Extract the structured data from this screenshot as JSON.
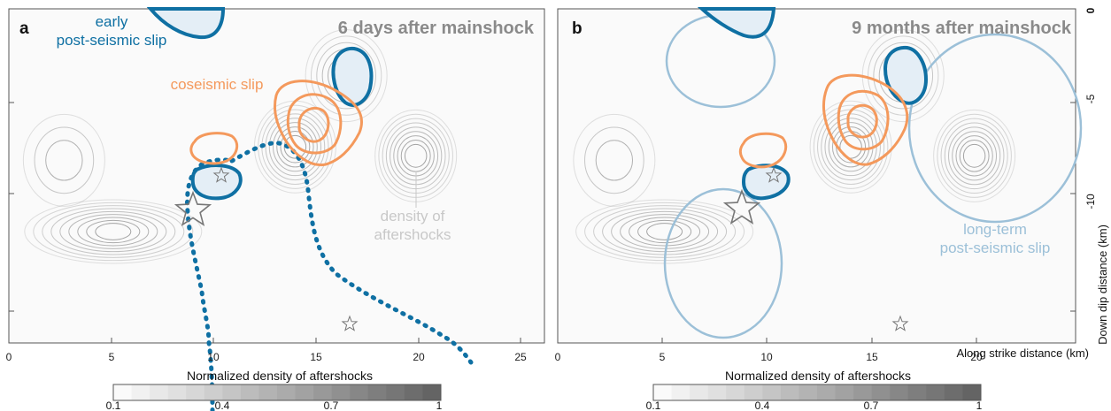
{
  "chart_data": [
    {
      "type": "contour",
      "panel_label": "a",
      "title": "6 days after mainshock",
      "xlim": [
        0,
        26
      ],
      "ylim": [
        0,
        -15
      ],
      "x_ticks": [
        0,
        5,
        10,
        15,
        20,
        25
      ],
      "y_ticks": [
        -5,
        -10
      ],
      "annotations": {
        "early_postseismic": [
          "early",
          "post-seismic slip"
        ],
        "coseismic": "coseismic slip",
        "density": [
          "density of",
          "aftershocks"
        ]
      },
      "aftershock_density_peaks": [
        {
          "x": 5.1,
          "y": -10.0,
          "peak": 1.0
        },
        {
          "x": 14.0,
          "y": -6.2,
          "peak": 1.0
        },
        {
          "x": 19.9,
          "y": -6.6,
          "peak": 1.0
        },
        {
          "x": 16.5,
          "y": -3.0,
          "peak": 0.7
        },
        {
          "x": 2.7,
          "y": -6.8,
          "peak": 0.3
        }
      ],
      "coseismic_slip_contours": [
        {
          "x": 14.2,
          "y": -6.0,
          "levels": 3
        },
        {
          "x": 9.5,
          "y": -7.7,
          "levels": 1
        }
      ],
      "early_postseismic_slip_patches": [
        {
          "x": 8.0,
          "y": 0.0
        },
        {
          "x": 16.9,
          "y": -3.2
        },
        {
          "x": 10.2,
          "y": -9.5
        }
      ],
      "early_postseismic_boundary": "dotted",
      "stars": [
        {
          "x": 8.8,
          "y": -10.7,
          "size": "large"
        },
        {
          "x": 10.4,
          "y": -9.1,
          "size": "small"
        },
        {
          "x": 16.6,
          "y": -13.5,
          "size": "small"
        }
      ]
    },
    {
      "type": "contour",
      "panel_label": "b",
      "title": "9 months after mainshock",
      "xlim": [
        0,
        26
      ],
      "ylim": [
        0,
        -15
      ],
      "x_ticks": [
        0,
        5,
        10,
        15,
        20,
        25
      ],
      "y_ticks": [
        0,
        -5,
        -10
      ],
      "xlabel": "Along strike distance (km)",
      "ylabel": "Down dip distance (km)",
      "annotations": {
        "long_term": [
          "long-term",
          "post-seismic slip"
        ]
      },
      "long_term_slip_circles": [
        {
          "x": 8.6,
          "y": -2.8
        },
        {
          "x": 8.6,
          "y": -11.3
        },
        {
          "x": 20.5,
          "y": -5.8
        }
      ],
      "stars": [
        {
          "x": 8.8,
          "y": -10.7,
          "size": "large"
        },
        {
          "x": 10.4,
          "y": -9.1,
          "size": "small"
        },
        {
          "x": 16.6,
          "y": -13.5,
          "size": "small"
        }
      ]
    }
  ],
  "colorbar": {
    "label": "Normalized density of aftershocks",
    "range": [
      0.1,
      1
    ],
    "ticks": [
      "0.1",
      "0.4",
      "0.7",
      "1"
    ]
  },
  "colors": {
    "coseismic": "#f4995c",
    "early_postseismic": "#0f70a3",
    "long_term": "#9cc0d8",
    "density": "#8a8a8a",
    "title": "#8a8a8a"
  }
}
